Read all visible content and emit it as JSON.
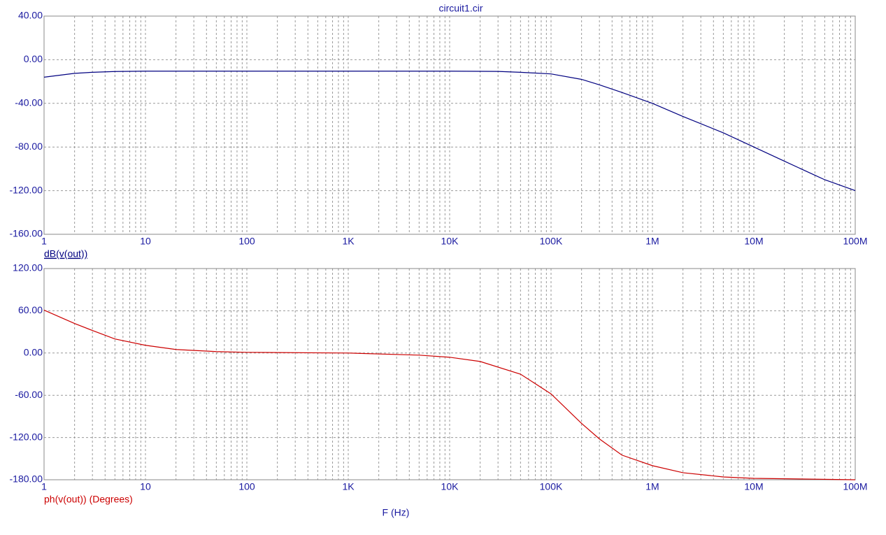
{
  "chart_data": [
    {
      "type": "line",
      "title": "circuit1.cir",
      "xscale": "log",
      "grid": true,
      "minor_grid": true,
      "axis_color": "#1a1aa0",
      "x": [
        1,
        2,
        3,
        5,
        10,
        100,
        1000,
        10000,
        30000,
        50000,
        100000,
        200000,
        300000,
        500000,
        1000000,
        2000000,
        5000000,
        10000000,
        20000000,
        50000000,
        100000000
      ],
      "series": [
        {
          "name": "dB(v(out))",
          "color": "#000080",
          "values": [
            -16,
            -12.5,
            -11.5,
            -10.8,
            -10.5,
            -10.5,
            -10.5,
            -10.5,
            -10.7,
            -11.5,
            -13,
            -18,
            -23,
            -30,
            -40,
            -52,
            -67,
            -80,
            -93,
            -110,
            -120
          ]
        }
      ],
      "xlim": [
        1,
        100000000
      ],
      "xticks": [
        1,
        10,
        100,
        {
          "value": 1000,
          "label": "1K"
        },
        {
          "value": 10000,
          "label": "10K"
        },
        {
          "value": 100000,
          "label": "100K"
        },
        {
          "value": 1000000,
          "label": "1M"
        },
        {
          "value": 10000000,
          "label": "10M"
        },
        {
          "value": 100000000,
          "label": "100M"
        }
      ],
      "ylim": [
        -160,
        40
      ],
      "yticks": [
        {
          "value": -160,
          "label": "-160.00"
        },
        {
          "value": -120,
          "label": "-120.00"
        },
        {
          "value": -80,
          "label": "-80.00"
        },
        {
          "value": -40,
          "label": "-40.00"
        },
        {
          "value": 0,
          "label": "0.00"
        },
        {
          "value": 40,
          "label": "40.00"
        }
      ]
    },
    {
      "type": "line",
      "xlabel": "F (Hz)",
      "xscale": "log",
      "grid": true,
      "minor_grid": true,
      "axis_color": "#1a1aa0",
      "x": [
        1,
        2,
        3,
        5,
        10,
        20,
        50,
        100,
        1000,
        5000,
        10000,
        20000,
        50000,
        100000,
        200000,
        300000,
        500000,
        1000000,
        2000000,
        5000000,
        10000000,
        100000000
      ],
      "series": [
        {
          "name": "ph(v(out)) (Degrees)",
          "color": "#cc0000",
          "values": [
            61,
            42,
            32,
            20,
            11,
            5,
            2,
            1,
            0,
            -3,
            -6,
            -12,
            -30,
            -58,
            -100,
            -122,
            -145,
            -160,
            -170,
            -176,
            -178,
            -180
          ]
        }
      ],
      "xlim": [
        1,
        100000000
      ],
      "xticks": [
        1,
        10,
        100,
        {
          "value": 1000,
          "label": "1K"
        },
        {
          "value": 10000,
          "label": "10K"
        },
        {
          "value": 100000,
          "label": "100K"
        },
        {
          "value": 1000000,
          "label": "1M"
        },
        {
          "value": 10000000,
          "label": "10M"
        },
        {
          "value": 100000000,
          "label": "100M"
        }
      ],
      "ylim": [
        -180,
        120
      ],
      "yticks": [
        {
          "value": -180,
          "label": "-180.00"
        },
        {
          "value": -120,
          "label": "-120.00"
        },
        {
          "value": -60,
          "label": "-60.00"
        },
        {
          "value": 0,
          "label": "0.00"
        },
        {
          "value": 60,
          "label": "60.00"
        },
        {
          "value": 120,
          "label": "120.00"
        }
      ]
    }
  ]
}
